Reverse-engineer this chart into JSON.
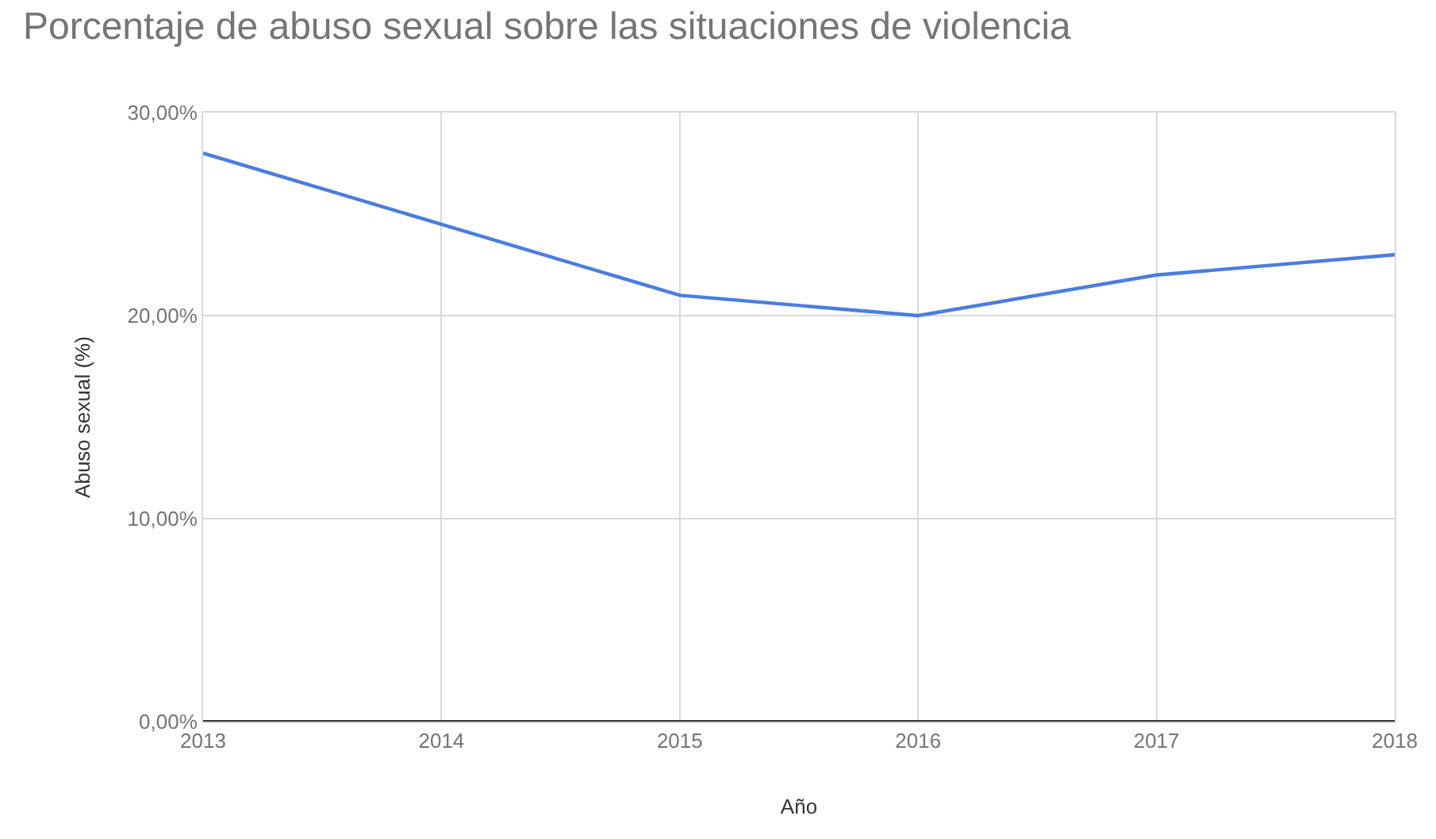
{
  "chart_data": {
    "type": "line",
    "title": "Porcentaje de abuso sexual sobre las situaciones de violencia",
    "xlabel": "Año",
    "ylabel": "Abuso sexual (%)",
    "x": [
      2013,
      2014,
      2015,
      2016,
      2017,
      2018
    ],
    "series": [
      {
        "color": "#4a7de0",
        "values": [
          28.0,
          24.5,
          21.0,
          20.0,
          22.0,
          23.0
        ]
      }
    ],
    "xlim": [
      2013,
      2018
    ],
    "xticks": [
      2013,
      2014,
      2015,
      2016,
      2017,
      2018
    ],
    "ylim": [
      0,
      30
    ],
    "yticks": [
      {
        "value": 0,
        "label": "0,00%"
      },
      {
        "value": 10,
        "label": "10,00%"
      },
      {
        "value": 20,
        "label": "20,00%"
      },
      {
        "value": 30,
        "label": "30,00%"
      }
    ],
    "grid": true,
    "marker": "none",
    "line_style": "solid"
  }
}
